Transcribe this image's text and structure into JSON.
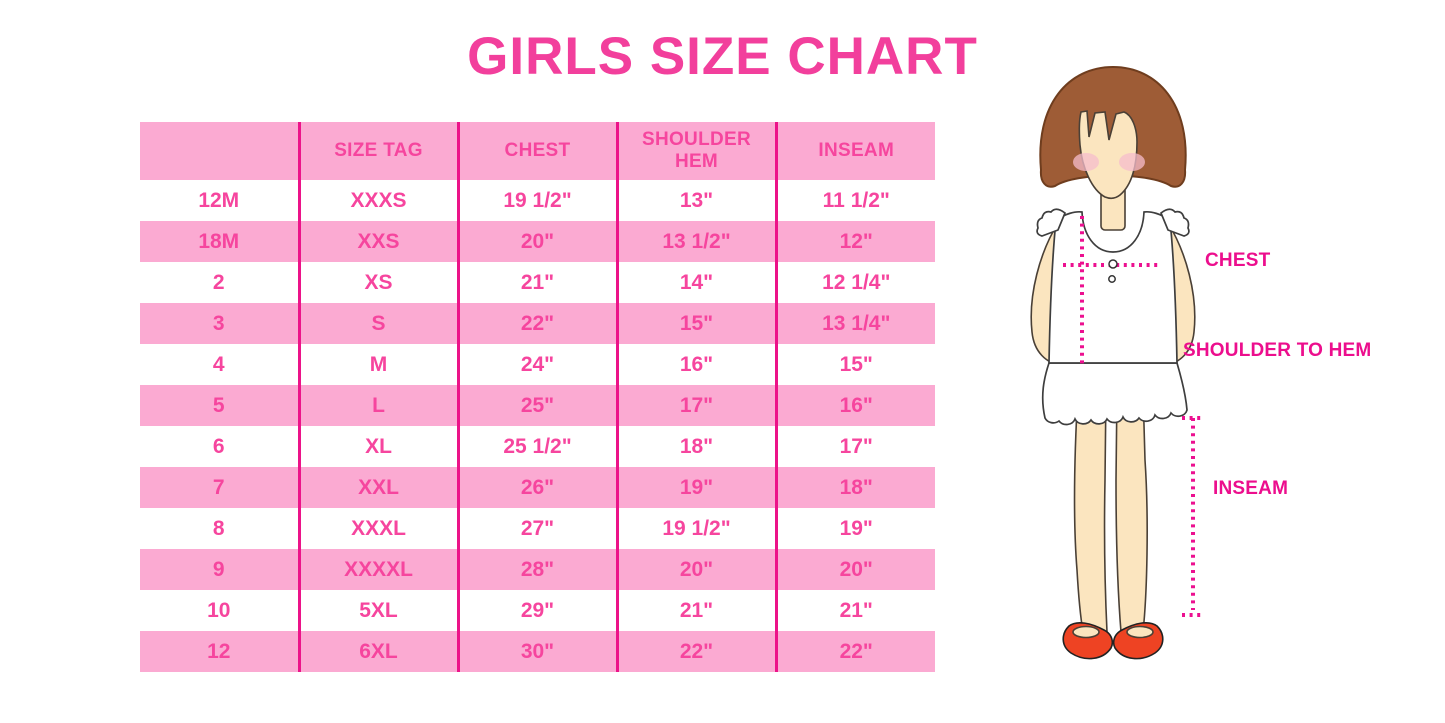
{
  "title": "GIRLS SIZE CHART",
  "chart_data": {
    "type": "table",
    "title": "GIRLS SIZE CHART",
    "columns": [
      "",
      "SIZE TAG",
      "CHEST",
      "SHOULDER HEM",
      "INSEAM"
    ],
    "rows": [
      [
        "12M",
        "XXXS",
        "19 1/2\"",
        "13\"",
        "11 1/2\""
      ],
      [
        "18M",
        "XXS",
        "20\"",
        "13 1/2\"",
        "12\""
      ],
      [
        "2",
        "XS",
        "21\"",
        "14\"",
        "12 1/4\""
      ],
      [
        "3",
        "S",
        "22\"",
        "15\"",
        "13 1/4\""
      ],
      [
        "4",
        "M",
        "24\"",
        "16\"",
        "15\""
      ],
      [
        "5",
        "L",
        "25\"",
        "17\"",
        "16\""
      ],
      [
        "6",
        "XL",
        "25 1/2\"",
        "18\"",
        "17\""
      ],
      [
        "7",
        "XXL",
        "26\"",
        "19\"",
        "18\""
      ],
      [
        "8",
        "XXXL",
        "27\"",
        "19 1/2\"",
        "19\""
      ],
      [
        "9",
        "XXXXL",
        "28\"",
        "20\"",
        "20\""
      ],
      [
        "10",
        "5XL",
        "29\"",
        "21\"",
        "21\""
      ],
      [
        "12",
        "6XL",
        "30\"",
        "22\"",
        "22\""
      ]
    ],
    "annotations": [
      "CHEST",
      "SHOULDER TO HEM",
      "INSEAM"
    ],
    "layout_hints": {
      "row_striping": "white and pink alternating",
      "grid": "vertical column dividers only"
    }
  },
  "figure": {
    "description": "cartoon girl with brown bob haircut, white sleeveless ruffled top, red mary-jane shoes, dotted measurement guides",
    "labels": {
      "chest": "CHEST",
      "shoulder_to_hem": "SHOULDER TO HEM",
      "inseam": "INSEAM"
    }
  },
  "colors": {
    "title_pink": "#F23F9C",
    "header_row_pink": "#FBAAD2",
    "table_border_magenta": "#EC1389",
    "table_text_pink": "#F6459E",
    "figure_label_magenta": "#EC0E8D",
    "dotted_line_magenta": "#EC1090",
    "hair_brown": "#9E5C36",
    "skin_tone": "#FBE5BF",
    "blush_pink": "#F5BCCC",
    "shoe_red": "#EE4323"
  }
}
